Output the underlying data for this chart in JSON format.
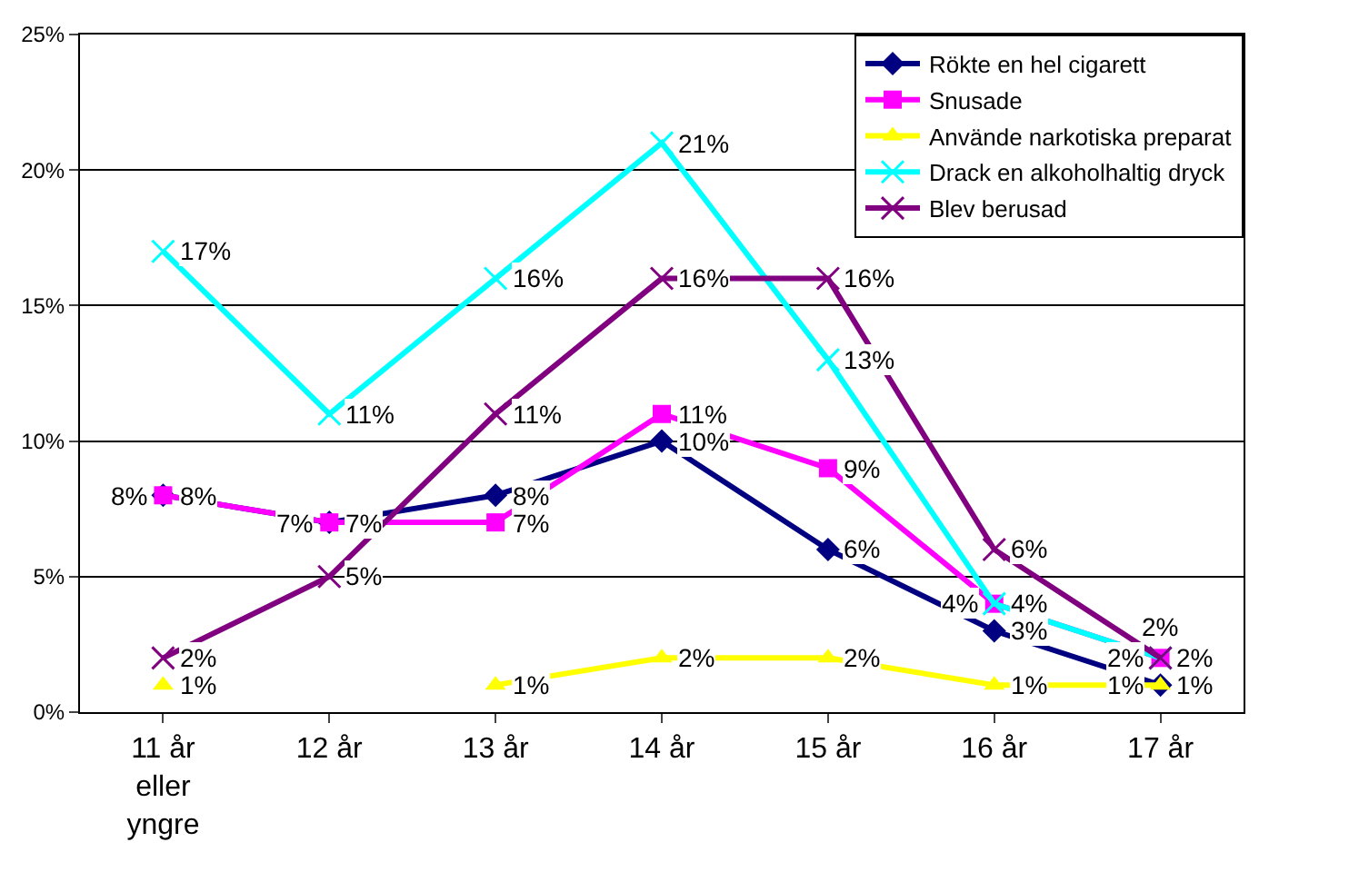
{
  "chart_data": {
    "type": "line",
    "categories": [
      "11 år eller yngre",
      "12 år",
      "13 år",
      "14 år",
      "15 år",
      "16 år",
      "17 år"
    ],
    "ylim": [
      0,
      25
    ],
    "yticks": [
      {
        "value": 0,
        "label": "0%"
      },
      {
        "value": 5,
        "label": "5%"
      },
      {
        "value": 10,
        "label": "10%"
      },
      {
        "value": 15,
        "label": "15%"
      },
      {
        "value": 20,
        "label": "20%"
      },
      {
        "value": 25,
        "label": "25%"
      }
    ],
    "grid": "y",
    "legend": "top right",
    "series": [
      {
        "name": "Rökte en hel cigarett",
        "color": "#000080",
        "marker": "diamond",
        "values": [
          8,
          7,
          8,
          10,
          6,
          3,
          1
        ],
        "value_labels": [
          "8%",
          "7%",
          "8%",
          "10%",
          "6%",
          "3%",
          "1%"
        ]
      },
      {
        "name": "Snusade",
        "color": "#ff00ff",
        "marker": "square",
        "values": [
          8,
          7,
          7,
          11,
          9,
          4,
          2
        ],
        "value_labels": [
          "8%",
          "7%",
          "7%",
          "11%",
          "9%",
          "4%",
          "2%"
        ]
      },
      {
        "name": "Använde narkotiska preparat",
        "color": "#ffff00",
        "marker": "triangle",
        "values": [
          1,
          null,
          1,
          2,
          2,
          1,
          1
        ],
        "value_labels": [
          "1%",
          null,
          "1%",
          "2%",
          "2%",
          "1%",
          "1%"
        ]
      },
      {
        "name": "Drack en alkoholhaltig dryck",
        "color": "#00ffff",
        "marker": "cross",
        "values": [
          17,
          11,
          16,
          21,
          13,
          4,
          2
        ],
        "value_labels": [
          "17%",
          "11%",
          "16%",
          "21%",
          "13%",
          "4%",
          "2%"
        ]
      },
      {
        "name": "Blev berusad",
        "color": "#800080",
        "marker": "cross",
        "values": [
          2,
          5,
          11,
          16,
          16,
          6,
          2
        ],
        "value_labels": [
          "2%",
          "5%",
          "11%",
          "16%",
          "16%",
          "6%",
          "2%"
        ]
      }
    ]
  }
}
